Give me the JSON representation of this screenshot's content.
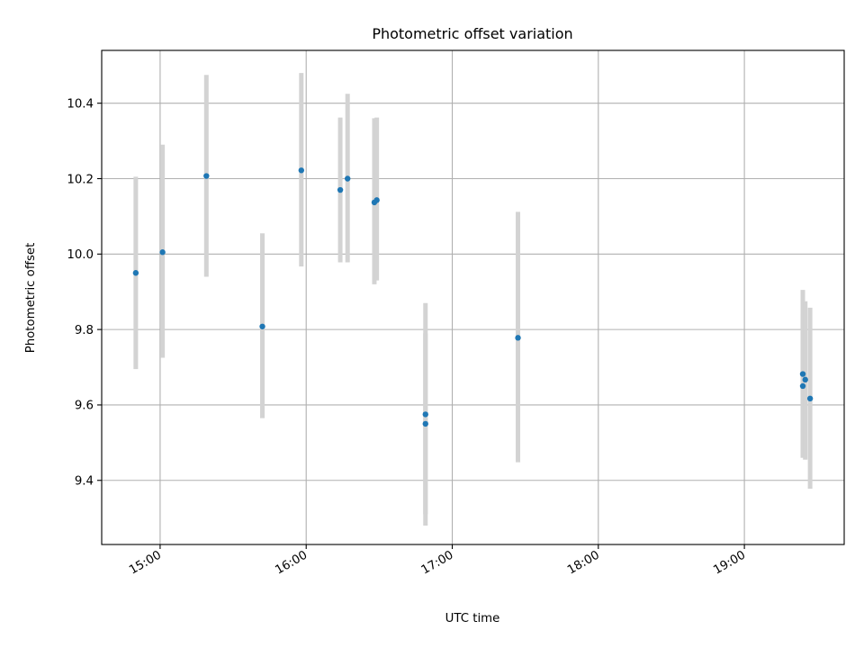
{
  "chart_data": {
    "type": "scatter",
    "title": "Photometric offset variation",
    "xlabel": "UTC time",
    "ylabel": "Photometric offset",
    "x_tick_labels": [
      "15:00",
      "16:00",
      "17:00",
      "18:00",
      "19:00"
    ],
    "y_tick_labels": [
      "9.4",
      "9.6",
      "9.8",
      "10.0",
      "10.2",
      "10.4"
    ],
    "xlim": [
      "14:36",
      "19:41"
    ],
    "ylim": [
      9.23,
      10.54
    ],
    "grid": true,
    "marker_color": "#1f77b4",
    "errorbar_color": "#d3d3d3",
    "points": [
      {
        "x": "14:50",
        "y": 9.95,
        "yerr_low": 9.695,
        "yerr_high": 10.205
      },
      {
        "x": "15:01",
        "y": 10.005,
        "yerr_low": 9.725,
        "yerr_high": 10.29
      },
      {
        "x": "15:19",
        "y": 10.207,
        "yerr_low": 9.94,
        "yerr_high": 10.475
      },
      {
        "x": "15:42",
        "y": 9.808,
        "yerr_low": 9.565,
        "yerr_high": 10.055
      },
      {
        "x": "15:58",
        "y": 10.222,
        "yerr_low": 9.967,
        "yerr_high": 10.48
      },
      {
        "x": "16:14",
        "y": 10.17,
        "yerr_low": 9.978,
        "yerr_high": 10.362
      },
      {
        "x": "16:17",
        "y": 10.2,
        "yerr_low": 9.978,
        "yerr_high": 10.425
      },
      {
        "x": "16:28",
        "y": 10.137,
        "yerr_low": 9.92,
        "yerr_high": 10.36
      },
      {
        "x": "16:29",
        "y": 10.143,
        "yerr_low": 9.93,
        "yerr_high": 10.362
      },
      {
        "x": "16:49",
        "y": 9.55,
        "yerr_low": 9.31,
        "yerr_high": 9.79
      },
      {
        "x": "16:49",
        "y": 9.575,
        "yerr_low": 9.28,
        "yerr_high": 9.87
      },
      {
        "x": "17:27",
        "y": 9.778,
        "yerr_low": 9.448,
        "yerr_high": 10.112
      },
      {
        "x": "19:24",
        "y": 9.65,
        "yerr_low": 9.46,
        "yerr_high": 9.84
      },
      {
        "x": "19:24",
        "y": 9.682,
        "yerr_low": 9.46,
        "yerr_high": 9.905
      },
      {
        "x": "19:25",
        "y": 9.667,
        "yerr_low": 9.455,
        "yerr_high": 9.875
      },
      {
        "x": "19:27",
        "y": 9.617,
        "yerr_low": 9.378,
        "yerr_high": 9.858
      }
    ]
  }
}
